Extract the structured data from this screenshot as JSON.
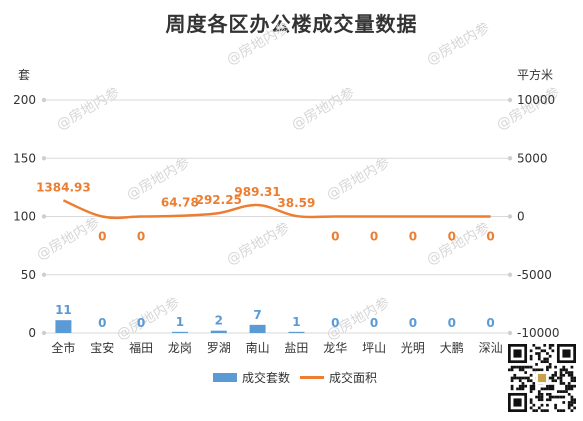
{
  "header": {
    "title": "周度各区办公楼成交量数据",
    "left_unit": "套",
    "right_unit": "平方米"
  },
  "legend": {
    "bar_label": "成交套数",
    "line_label": "成交面积"
  },
  "colors": {
    "bar": "#5b9bd5",
    "line": "#ed7d31",
    "text": "#333333",
    "grid_axis": "#d9d9d9",
    "watermark": "#d7d7d7"
  },
  "watermark_text": "@房地内参",
  "chart_data": {
    "type": "bar+line",
    "title": "周度各区办公楼成交量数据",
    "categories": [
      "全市",
      "宝安",
      "福田",
      "龙岗",
      "罗湖",
      "南山",
      "盐田",
      "龙华",
      "坪山",
      "光明",
      "大鹏",
      "深汕"
    ],
    "series": [
      {
        "name": "成交套数",
        "type": "bar",
        "axis": "left",
        "values": [
          11,
          0,
          0,
          1,
          2,
          7,
          1,
          0,
          0,
          0,
          0,
          0
        ],
        "labels": [
          "11",
          "0",
          "0",
          "1",
          "2",
          "7",
          "1",
          "0",
          "0",
          "0",
          "0",
          "0"
        ]
      },
      {
        "name": "成交面积",
        "type": "line",
        "axis": "right",
        "smooth": true,
        "values": [
          1384.93,
          0,
          0,
          64.78,
          292.25,
          989.31,
          38.59,
          0,
          0,
          0,
          0,
          0
        ],
        "labels": [
          "1384.93",
          "0",
          "0",
          "64.78",
          "292.25",
          "989.31",
          "38.59",
          "0",
          "0",
          "0",
          "0",
          "0"
        ]
      }
    ],
    "y_left": {
      "label": "套",
      "min": 0,
      "max": 200,
      "ticks": [
        0,
        50,
        100,
        150,
        200
      ],
      "tick_labels": [
        "0",
        "50",
        "100",
        "150",
        "200"
      ]
    },
    "y_right": {
      "label": "平方米",
      "min": -10000,
      "max": 10000,
      "ticks": [
        -10000,
        -5000,
        0,
        5000,
        10000
      ],
      "tick_labels": [
        "-10000",
        "-5000",
        "0",
        "5000",
        "10000"
      ]
    },
    "grid": true,
    "legend_position": "bottom"
  }
}
